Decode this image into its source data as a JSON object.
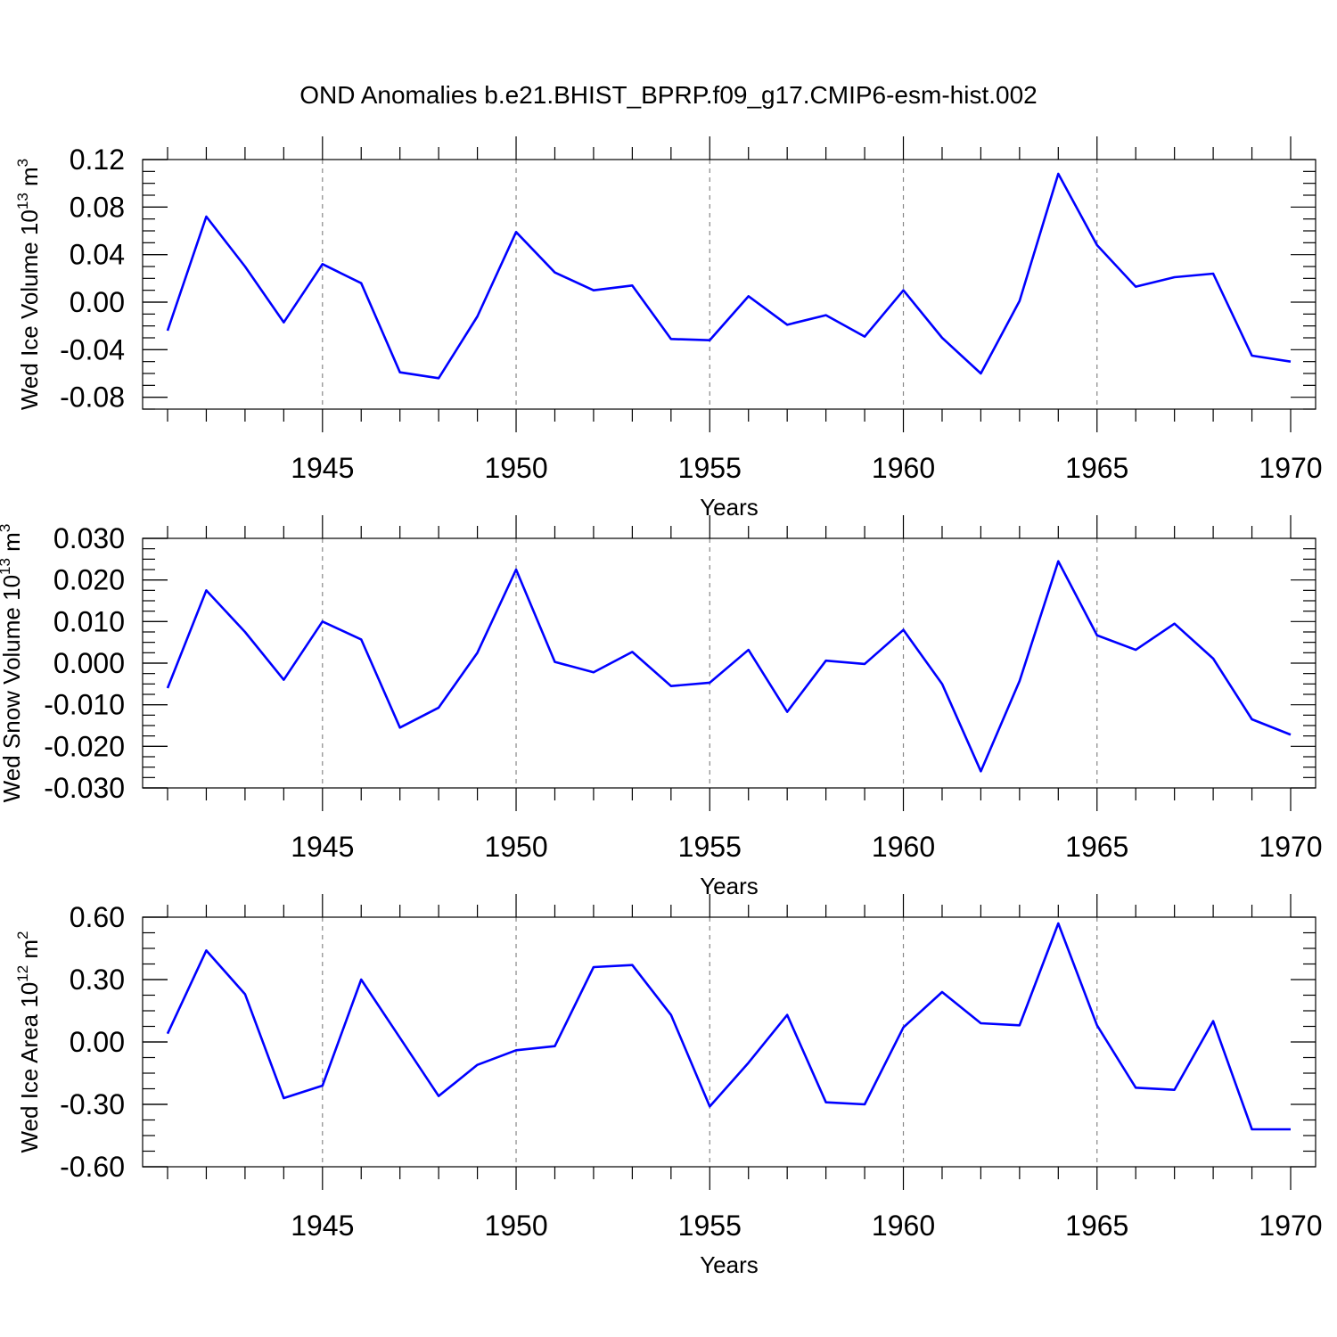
{
  "title": "OND Anomalies b.e21.BHIST_BPRP.f09_g17.CMIP6-esm-hist.002",
  "colors": {
    "series": "#0000ff",
    "grid": "#888888"
  },
  "chart_data": [
    {
      "type": "line",
      "id": "ice-volume",
      "ylabel": {
        "main": "Wed Ice Volume 10",
        "sup1": "13",
        "mid": " m",
        "sup2": "3"
      },
      "xlabel": "Years",
      "xlim": [
        1941,
        1970
      ],
      "ylim": [
        -0.09,
        0.12
      ],
      "yticks": [
        -0.08,
        -0.04,
        0.0,
        0.04,
        0.08,
        0.12
      ],
      "ytick_labels": [
        "-0.08",
        "-0.04",
        "0.00",
        "0.04",
        "0.08",
        "0.12"
      ],
      "xticks": [
        1945,
        1950,
        1955,
        1960,
        1965,
        1970
      ],
      "xtick_labels": [
        "1945",
        "1950",
        "1955",
        "1960",
        "1965",
        "1970"
      ],
      "grid": "vertical dashed at major x ticks",
      "x": [
        1941,
        1942,
        1943,
        1944,
        1945,
        1946,
        1947,
        1948,
        1949,
        1950,
        1951,
        1952,
        1953,
        1954,
        1955,
        1956,
        1957,
        1958,
        1959,
        1960,
        1961,
        1962,
        1963,
        1964,
        1965,
        1966,
        1967,
        1968,
        1969,
        1970
      ],
      "series": [
        {
          "values": [
            -0.024,
            0.072,
            0.03,
            -0.017,
            0.032,
            0.016,
            -0.059,
            -0.064,
            -0.012,
            0.059,
            0.025,
            0.01,
            0.014,
            -0.031,
            -0.032,
            0.005,
            -0.019,
            -0.011,
            -0.029,
            0.01,
            -0.03,
            -0.06,
            0.001,
            0.108,
            0.048,
            0.013,
            0.021,
            0.024,
            -0.045,
            -0.05
          ]
        }
      ]
    },
    {
      "type": "line",
      "id": "snow-volume",
      "ylabel": {
        "main": "Wed Snow Volume 10",
        "sup1": "13",
        "mid": " m",
        "sup2": "3"
      },
      "xlabel": "Years",
      "xlim": [
        1941,
        1970
      ],
      "ylim": [
        -0.03,
        0.03
      ],
      "yticks": [
        -0.03,
        -0.02,
        -0.01,
        0.0,
        0.01,
        0.02,
        0.03
      ],
      "ytick_labels": [
        "-0.030",
        "-0.020",
        "-0.010",
        "0.000",
        "0.010",
        "0.020",
        "0.030"
      ],
      "xticks": [
        1945,
        1950,
        1955,
        1960,
        1965,
        1970
      ],
      "xtick_labels": [
        "1945",
        "1950",
        "1955",
        "1960",
        "1965",
        "1970"
      ],
      "grid": "vertical dashed at major x ticks",
      "x": [
        1941,
        1942,
        1943,
        1944,
        1945,
        1946,
        1947,
        1948,
        1949,
        1950,
        1951,
        1952,
        1953,
        1954,
        1955,
        1956,
        1957,
        1958,
        1959,
        1960,
        1961,
        1962,
        1963,
        1964,
        1965,
        1966,
        1967,
        1968,
        1969,
        1970
      ],
      "series": [
        {
          "values": [
            -0.006,
            0.0175,
            0.0075,
            -0.004,
            0.01,
            0.0057,
            -0.0155,
            -0.0107,
            0.0025,
            0.0225,
            0.0003,
            -0.0022,
            0.0027,
            -0.0055,
            -0.0047,
            0.0032,
            -0.0117,
            0.0006,
            -0.0002,
            0.008,
            -0.005,
            -0.026,
            -0.0043,
            0.0245,
            0.0067,
            0.0032,
            0.0095,
            0.0011,
            -0.0135,
            -0.0172
          ]
        }
      ]
    },
    {
      "type": "line",
      "id": "ice-area",
      "ylabel": {
        "main": "Wed Ice Area 10",
        "sup1": "12",
        "mid": " m",
        "sup2": "2"
      },
      "xlabel": "Years",
      "xlim": [
        1941,
        1970
      ],
      "ylim": [
        -0.6,
        0.6
      ],
      "yticks": [
        -0.6,
        -0.3,
        0.0,
        0.3,
        0.6
      ],
      "ytick_labels": [
        "-0.60",
        "-0.30",
        "0.00",
        "0.30",
        "0.60"
      ],
      "xticks": [
        1945,
        1950,
        1955,
        1960,
        1965,
        1970
      ],
      "xtick_labels": [
        "1945",
        "1950",
        "1955",
        "1960",
        "1965",
        "1970"
      ],
      "grid": "vertical dashed at major x ticks",
      "x": [
        1941,
        1942,
        1943,
        1944,
        1945,
        1946,
        1947,
        1948,
        1949,
        1950,
        1951,
        1952,
        1953,
        1954,
        1955,
        1956,
        1957,
        1958,
        1959,
        1960,
        1961,
        1962,
        1963,
        1964,
        1965,
        1966,
        1967,
        1968,
        1969,
        1970
      ],
      "series": [
        {
          "values": [
            0.04,
            0.44,
            0.23,
            -0.27,
            -0.21,
            0.3,
            0.02,
            -0.26,
            -0.11,
            -0.04,
            -0.02,
            0.36,
            0.37,
            0.13,
            -0.31,
            -0.1,
            0.13,
            -0.29,
            -0.3,
            0.07,
            0.24,
            0.09,
            0.08,
            0.57,
            0.08,
            -0.22,
            -0.23,
            0.1,
            -0.42,
            -0.42
          ]
        }
      ]
    }
  ]
}
